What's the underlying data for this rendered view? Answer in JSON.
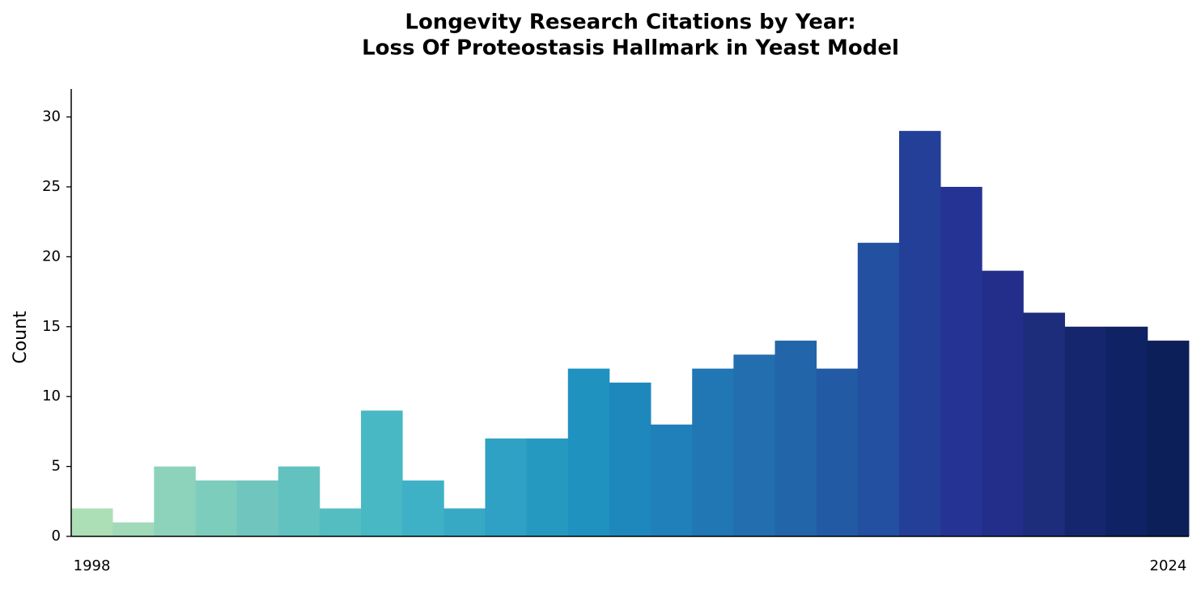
{
  "chart_data": {
    "type": "bar",
    "title": [
      "Longevity Research Citations by Year:",
      "Loss Of Proteostasis Hallmark in Yeast Model"
    ],
    "y_label": "Count",
    "categories": [
      "1998",
      null,
      null,
      null,
      null,
      null,
      null,
      null,
      null,
      null,
      null,
      null,
      null,
      null,
      null,
      null,
      null,
      null,
      null,
      null,
      null,
      null,
      null,
      null,
      null,
      null,
      "2024"
    ],
    "values": [
      2,
      1,
      5,
      4,
      4,
      5,
      2,
      9,
      4,
      2,
      7,
      7,
      12,
      11,
      8,
      12,
      13,
      14,
      12,
      21,
      29,
      25,
      19,
      16,
      15,
      15,
      14
    ],
    "colors": [
      "#addfb7",
      "#a0dab8",
      "#8dd3bb",
      "#7dcdbc",
      "#70c6be",
      "#62c2c0",
      "#54bdc2",
      "#48b8c4",
      "#3fb1c6",
      "#38a9c5",
      "#2ea1c4",
      "#2699c1",
      "#1f92c0",
      "#1e88bc",
      "#2080b9",
      "#2177b4",
      "#226eaf",
      "#2265a9",
      "#225ba4",
      "#2350a0",
      "#243f98",
      "#253494",
      "#232d8a",
      "#1d2c7b",
      "#15266e",
      "#0f2264",
      "#0c1f59"
    ],
    "ylim": [
      0,
      32
    ],
    "yticks": [
      0,
      5,
      10,
      15,
      20,
      25,
      30
    ],
    "grid": false
  }
}
